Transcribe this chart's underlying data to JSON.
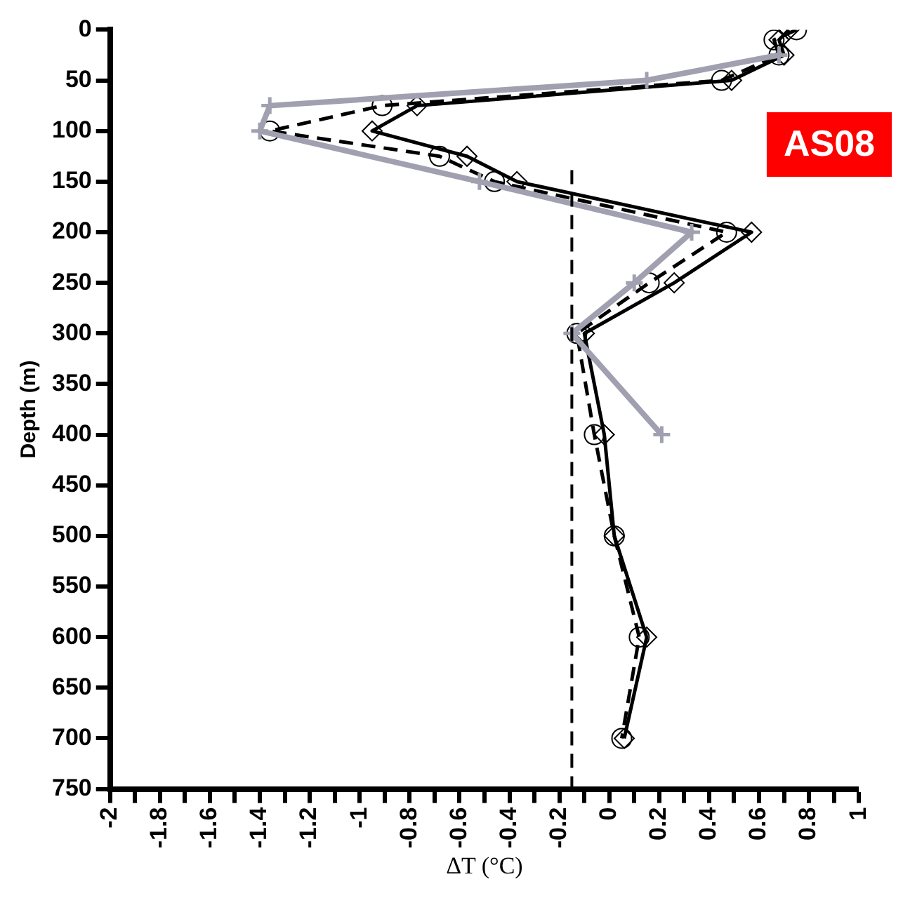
{
  "chart_data": {
    "type": "line",
    "xlabel": "ΔT (°C)",
    "ylabel": "Depth (m)",
    "annotations": [
      "AS08"
    ],
    "xlim": [
      -2,
      1
    ],
    "xticks": [
      -2,
      {
        "value": -1.9,
        "label": null
      },
      -1.8,
      {
        "value": -1.7,
        "label": null
      },
      -1.6,
      {
        "value": -1.5,
        "label": null
      },
      -1.4,
      {
        "value": -1.3,
        "label": null
      },
      -1.2,
      {
        "value": -1.1,
        "label": null
      },
      -1,
      {
        "value": -0.9,
        "label": null
      },
      -0.8,
      {
        "value": -0.7,
        "label": null
      },
      -0.6,
      {
        "value": -0.5,
        "label": null
      },
      -0.4,
      {
        "value": -0.3,
        "label": null
      },
      -0.2,
      {
        "value": -0.1,
        "label": null
      },
      0,
      {
        "value": 0.1,
        "label": null
      },
      0.2,
      {
        "value": 0.3,
        "label": null
      },
      0.4,
      {
        "value": 0.5,
        "label": null
      },
      0.6,
      {
        "value": 0.7,
        "label": null
      },
      0.8,
      {
        "value": 0.9,
        "label": null
      },
      1
    ],
    "ylim": [
      750,
      0
    ],
    "yticks": [
      0,
      50,
      100,
      150,
      200,
      250,
      300,
      350,
      400,
      450,
      500,
      550,
      600,
      650,
      700,
      750
    ],
    "grid": false,
    "legend": false,
    "ref_lines": [
      {
        "axis": "x",
        "value": -0.15,
        "color": "#000000",
        "line_style": "dashed"
      }
    ],
    "series": [
      {
        "color": "#a0a0b0",
        "marker": "cross",
        "line_style": "solid",
        "x": [
          0.68,
          0.15,
          -1.36,
          -1.4,
          -0.52,
          0.33,
          0.1,
          -0.15,
          0.21
        ],
        "values": [
          25,
          50,
          75,
          100,
          150,
          200,
          250,
          300,
          400
        ]
      },
      {
        "color": "#000000",
        "marker": "circle",
        "line_style": "dashed",
        "x": [
          0.75,
          0.66,
          0.68,
          0.45,
          -0.91,
          -1.36,
          -0.68,
          -0.46,
          0.47,
          0.16,
          -0.13,
          -0.06,
          0.02,
          0.12,
          0.05
        ],
        "values": [
          0,
          10,
          25,
          50,
          75,
          100,
          125,
          150,
          200,
          250,
          300,
          400,
          500,
          600,
          700
        ]
      },
      {
        "color": "#000000",
        "marker": "diamond",
        "line_style": "solid",
        "x": [
          0.72,
          0.68,
          0.7,
          0.49,
          -0.77,
          -0.95,
          -0.57,
          -0.37,
          0.57,
          0.26,
          -0.1,
          -0.02,
          0.02,
          0.15,
          0.06
        ],
        "values": [
          0,
          10,
          25,
          50,
          75,
          100,
          125,
          150,
          200,
          250,
          300,
          400,
          500,
          600,
          700
        ]
      }
    ]
  }
}
